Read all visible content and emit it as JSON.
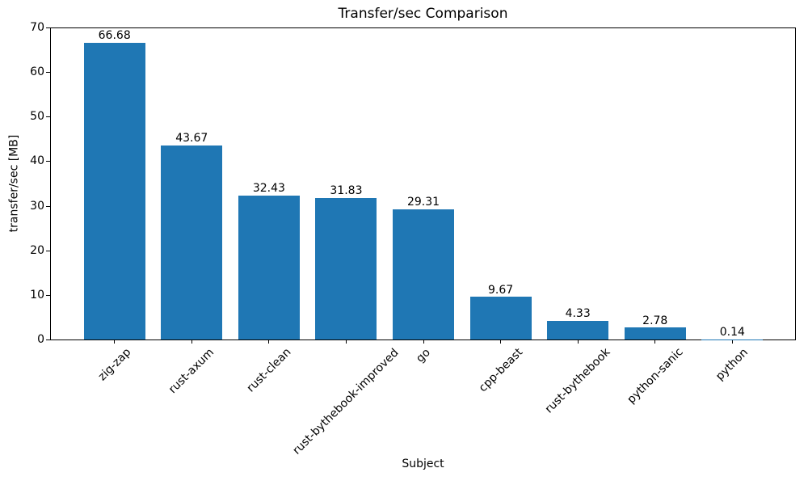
{
  "chart_data": {
    "type": "bar",
    "title": "Transfer/sec Comparison",
    "xlabel": "Subject",
    "ylabel": "transfer/sec [MB]",
    "categories": [
      "zig-zap",
      "rust-axum",
      "rust-clean",
      "rust-bythebook-improved",
      "go",
      "cpp-beast",
      "rust-bythebook",
      "python-sanic",
      "python"
    ],
    "values": [
      66.68,
      43.67,
      32.43,
      31.83,
      29.31,
      9.67,
      4.33,
      2.78,
      0.14
    ],
    "value_labels": [
      "66.68",
      "43.67",
      "32.43",
      "31.83",
      "29.31",
      "9.67",
      "4.33",
      "2.78",
      "0.14"
    ],
    "ylim": [
      0,
      70
    ],
    "yticks": [
      0,
      10,
      20,
      30,
      40,
      50,
      60,
      70
    ],
    "bar_color": "#1f77b4",
    "text_color": "#000000",
    "grid": false,
    "legend": "none",
    "x_tick_rotation_deg": 45
  }
}
